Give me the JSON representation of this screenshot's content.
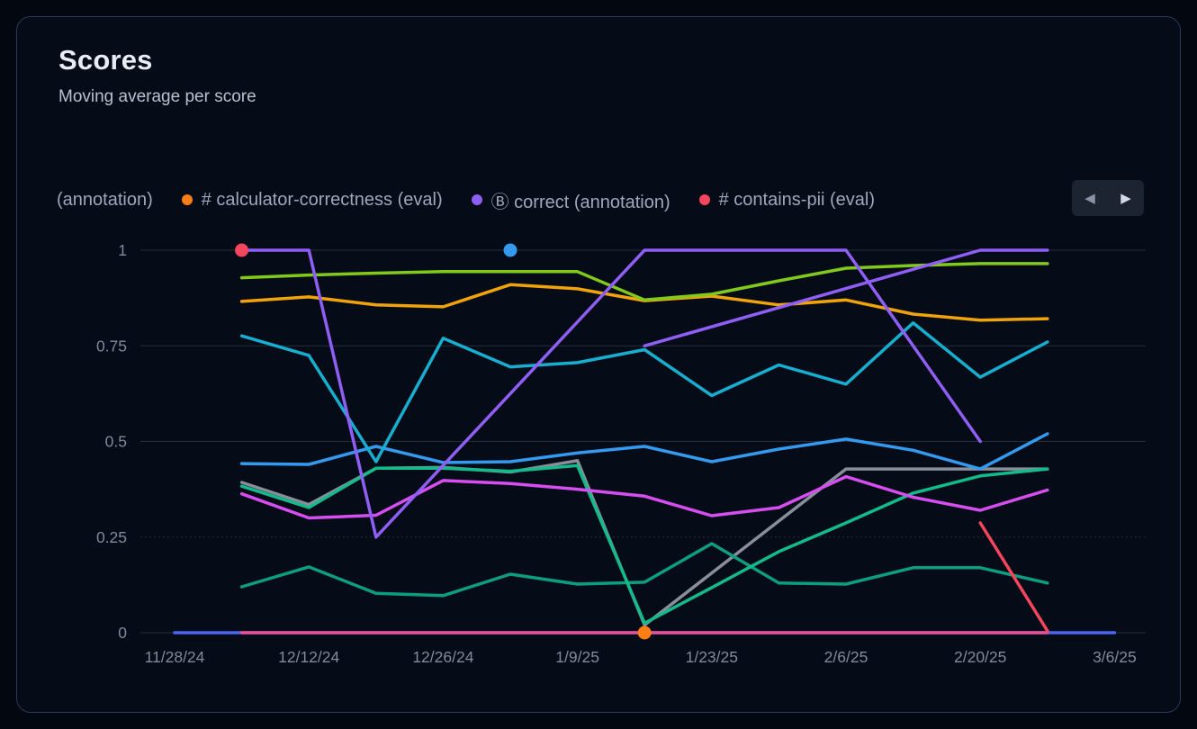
{
  "header": {
    "title": "Scores",
    "subtitle": "Moving average per score"
  },
  "legend": {
    "items": [
      {
        "label": "(annotation)",
        "color": null
      },
      {
        "label": "# calculator-correctness (eval)",
        "color": "#fd7e14"
      },
      {
        "label": "Ⓑ correct (annotation)",
        "color": "#8f5ff5"
      },
      {
        "label": "# contains-pii (eval)",
        "color": "#f4465c"
      }
    ],
    "nav": {
      "prev_icon": "◀",
      "next_icon": "▶"
    }
  },
  "chart_data": {
    "type": "line",
    "title": "Scores",
    "subtitle": "Moving average per score",
    "ylim": [
      0,
      1
    ],
    "grid": true,
    "y_ticks": [
      0,
      0.25,
      0.5,
      0.75,
      1
    ],
    "y_tick_labels": [
      "0",
      "0.25",
      "0.5",
      "0.75",
      "1"
    ],
    "x": [
      "11/28/24",
      "12/5/24",
      "12/12/24",
      "12/19/24",
      "12/26/24",
      "1/2/25",
      "1/9/25",
      "1/16/25",
      "1/23/25",
      "1/30/25",
      "2/6/25",
      "2/13/25",
      "2/20/25",
      "2/27/25",
      "3/6/25"
    ],
    "x_tick_labels": [
      "11/28/24",
      "12/12/24",
      "12/26/24",
      "1/9/25",
      "1/23/25",
      "2/6/25",
      "2/20/25",
      "3/6/25"
    ],
    "series": [
      {
        "name": "indigo-zero",
        "color": "#4c66f0",
        "values": [
          0,
          0,
          0,
          0,
          0,
          0,
          0,
          0,
          0,
          0,
          0,
          0,
          0,
          0,
          0
        ]
      },
      {
        "name": "pink-zero",
        "color": "#ea4f96",
        "values": [
          null,
          0,
          0,
          0,
          0,
          0,
          0,
          0,
          0,
          0,
          0,
          0,
          0,
          0,
          null
        ]
      },
      {
        "name": "gray",
        "color": "#878f9a",
        "values": [
          null,
          0.393,
          0.335,
          0.43,
          0.432,
          0.42,
          0.45,
          0.02,
          null,
          null,
          0.428,
          0.428,
          0.428,
          0.428,
          null
        ]
      },
      {
        "name": "teal",
        "color": "#0d9e7f",
        "values": [
          null,
          0.12,
          0.172,
          0.103,
          0.097,
          0.153,
          0.127,
          0.132,
          0.233,
          0.13,
          0.127,
          0.17,
          0.17,
          0.13,
          null
        ]
      },
      {
        "name": "green",
        "color": "#13ba8a",
        "values": [
          null,
          0.383,
          0.327,
          0.43,
          0.43,
          0.422,
          0.437,
          0.025,
          0.118,
          0.212,
          0.287,
          0.365,
          0.41,
          0.428,
          null
        ]
      },
      {
        "name": "magenta",
        "color": "#d74ef0",
        "values": [
          null,
          0.363,
          0.3,
          0.307,
          0.398,
          0.39,
          0.375,
          0.357,
          0.306,
          0.327,
          0.408,
          0.354,
          0.32,
          0.373,
          null
        ]
      },
      {
        "name": "blue",
        "color": "#339af0",
        "values": [
          null,
          0.442,
          0.44,
          0.487,
          0.445,
          0.447,
          0.47,
          0.487,
          0.447,
          0.48,
          0.506,
          0.477,
          0.428,
          0.52,
          null
        ]
      },
      {
        "name": "cyan",
        "color": "#17aecf",
        "values": [
          null,
          0.776,
          0.725,
          0.447,
          0.77,
          0.695,
          0.706,
          0.74,
          0.62,
          0.7,
          0.65,
          0.81,
          0.668,
          0.76,
          null
        ]
      },
      {
        "name": "amber",
        "color": "#f0a30a",
        "values": [
          null,
          0.866,
          0.878,
          0.857,
          0.852,
          0.91,
          0.899,
          0.868,
          0.88,
          0.857,
          0.87,
          0.833,
          0.817,
          0.821,
          null
        ]
      },
      {
        "name": "lime",
        "color": "#82c91e",
        "values": [
          null,
          0.928,
          0.935,
          0.94,
          0.944,
          0.944,
          0.944,
          0.87,
          0.885,
          0.92,
          0.953,
          0.96,
          0.965,
          0.965,
          null
        ]
      },
      {
        "name": "violet-a",
        "color": "#8f5ff5",
        "values": [
          null,
          1,
          1,
          0.25,
          null,
          null,
          null,
          1,
          null,
          null,
          1,
          null,
          0.5,
          null,
          null
        ]
      },
      {
        "name": "violet-b",
        "color": "#8f5ff5",
        "values": [
          null,
          null,
          null,
          null,
          null,
          null,
          null,
          0.75,
          null,
          null,
          null,
          null,
          1,
          1,
          null
        ]
      },
      {
        "name": "red",
        "color": "#f4465c",
        "values": [
          null,
          null,
          null,
          null,
          null,
          null,
          null,
          null,
          null,
          null,
          null,
          null,
          0.287,
          0.005,
          null
        ]
      }
    ],
    "markers": [
      {
        "date": "12/5/24",
        "x_index": 1,
        "value": 1,
        "color": "#f4465c",
        "name": "red-point"
      },
      {
        "date": "1/2/25",
        "x_index": 5,
        "value": 1,
        "color": "#339af0",
        "name": "blue-point"
      },
      {
        "date": "1/16/25",
        "x_index": 7,
        "value": 0,
        "color": "#fd7e14",
        "name": "orange-point"
      }
    ],
    "legend_position": "top"
  }
}
